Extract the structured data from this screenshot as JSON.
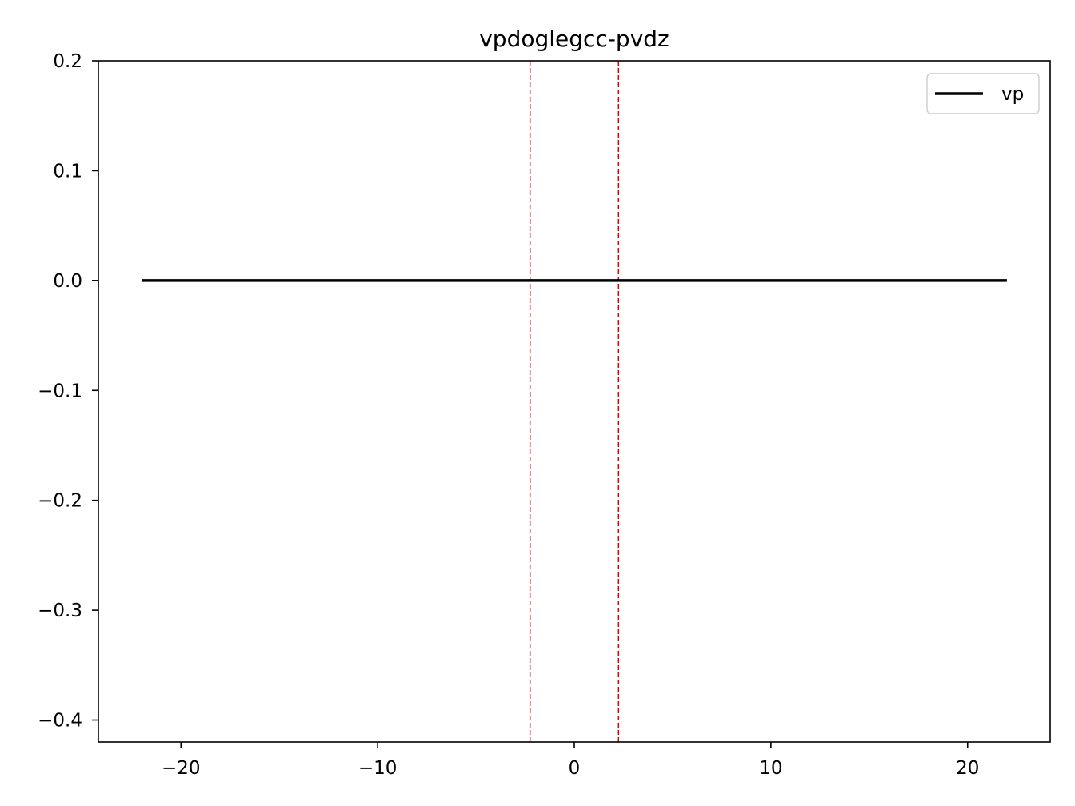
{
  "chart_data": {
    "type": "line",
    "title": "vpdoglegcc-pvdz",
    "xlabel": "",
    "ylabel": "",
    "xlim": [
      -24.2,
      24.2
    ],
    "ylim": [
      -0.42,
      0.2
    ],
    "x_ticks": [
      -20,
      -10,
      0,
      10,
      20
    ],
    "x_tick_labels": [
      "−20",
      "−10",
      "0",
      "10",
      "20"
    ],
    "y_ticks": [
      0.2,
      0.1,
      0.0,
      -0.1,
      -0.2,
      -0.3,
      -0.4
    ],
    "y_tick_labels": [
      "0.2",
      "0.1",
      "0.0",
      "−0.1",
      "−0.2",
      "−0.3",
      "−0.4"
    ],
    "grid": false,
    "legend_position": "top-right",
    "series": [
      {
        "name": "vp",
        "color": "#000000",
        "x": [
          -22,
          22
        ],
        "y": [
          0.0,
          0.0
        ]
      }
    ],
    "vlines": [
      {
        "x": -2.25,
        "color": "#e00000",
        "style": "dashed"
      },
      {
        "x": 2.25,
        "color": "#e00000",
        "style": "dashed"
      }
    ]
  }
}
